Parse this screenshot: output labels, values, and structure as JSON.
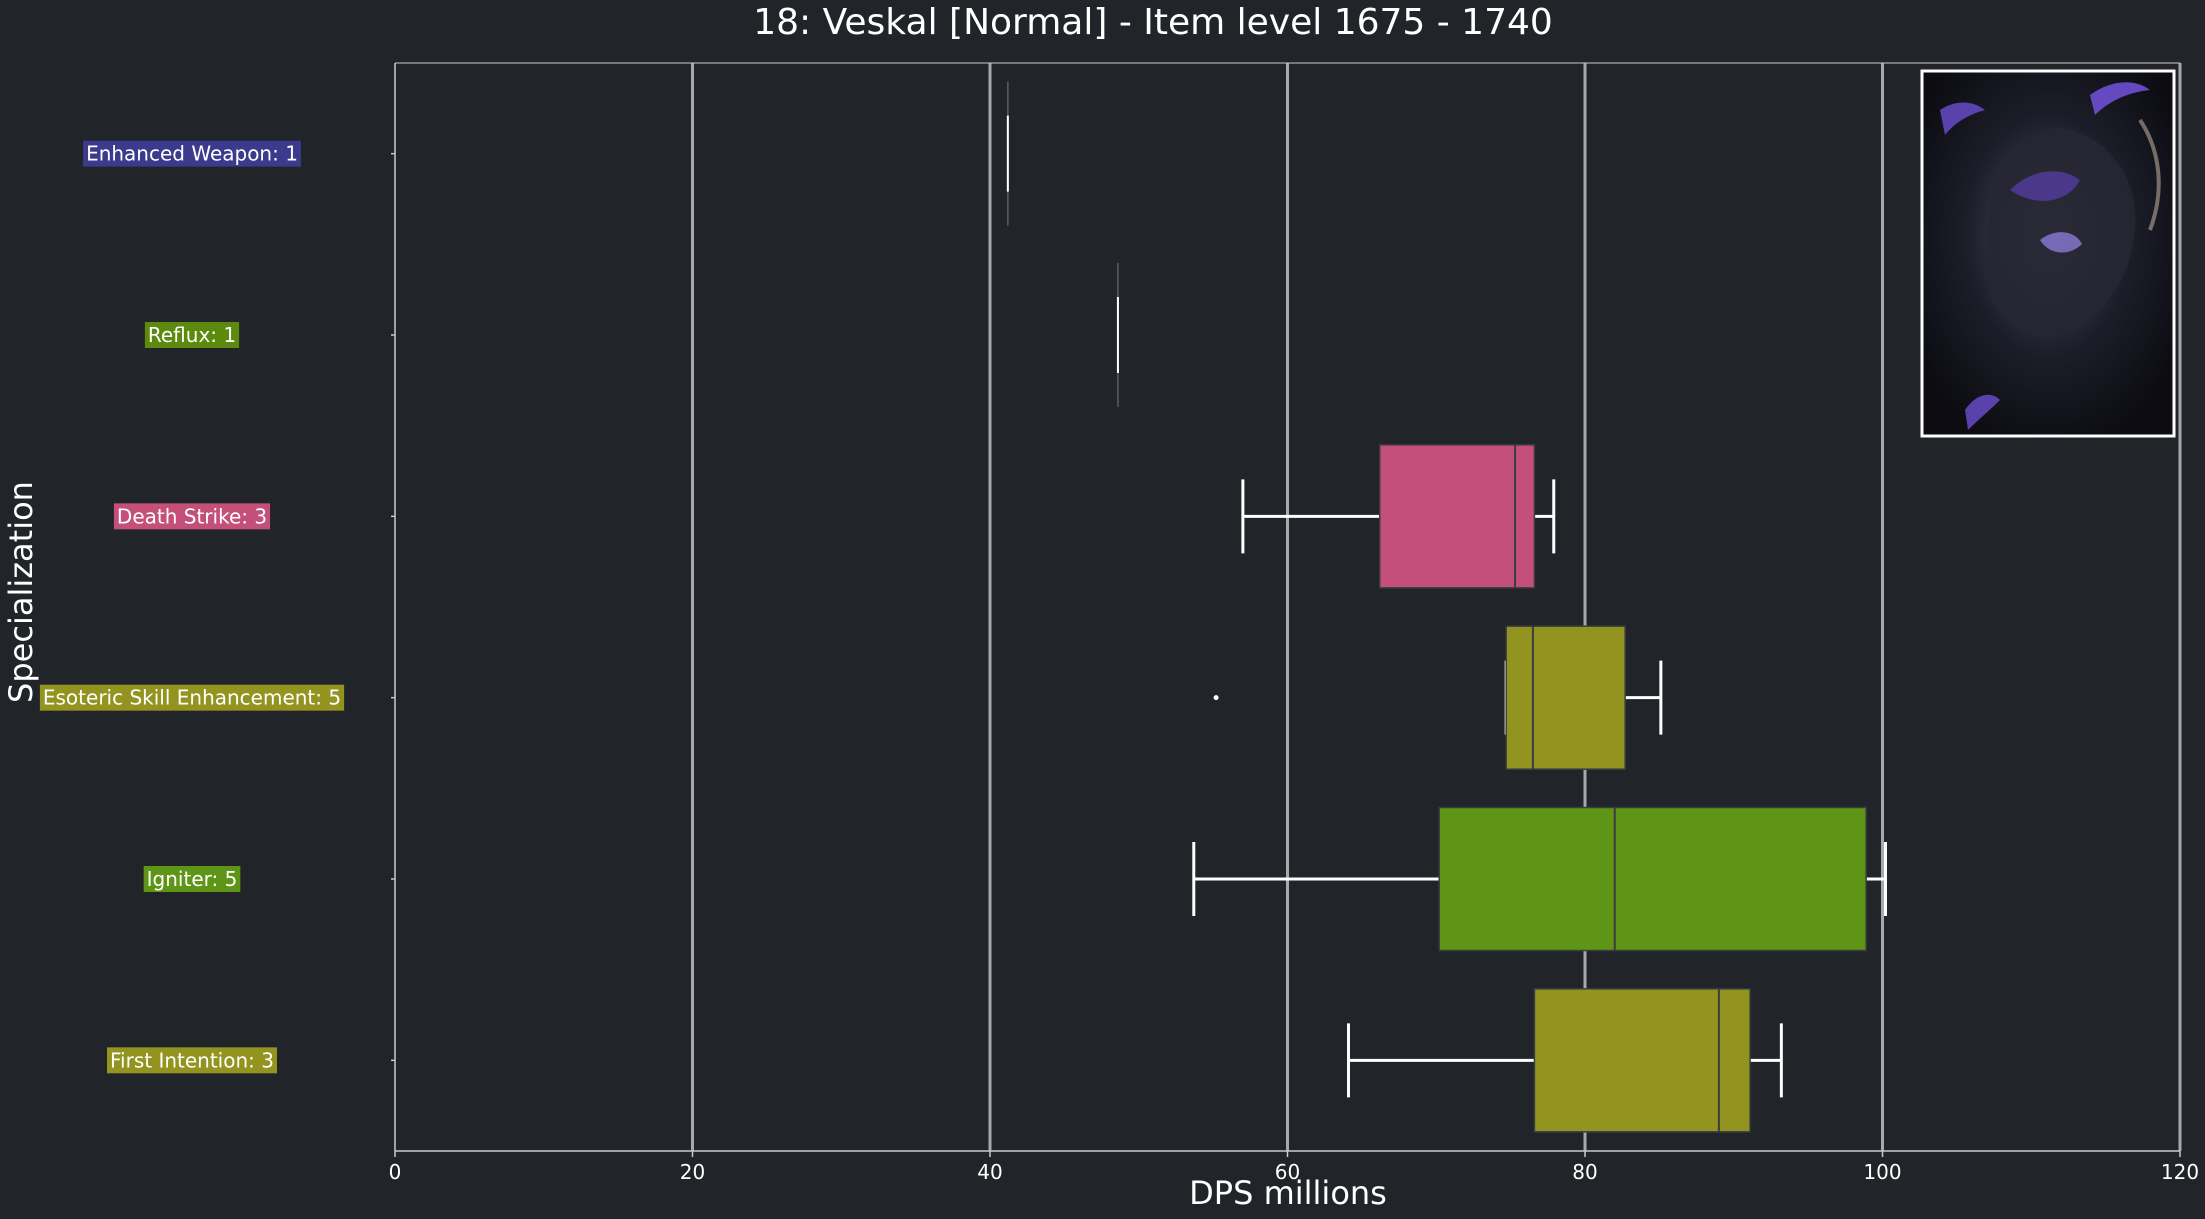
{
  "chart_data": {
    "type": "box",
    "orientation": "horizontal",
    "title": "18: Veskal [Normal] - Item level 1675 - 1740",
    "xlabel": "DPS millions",
    "ylabel": "Specialization",
    "xlim": [
      0,
      120
    ],
    "xticks": [
      0,
      20,
      40,
      60,
      80,
      100,
      120
    ],
    "grid": "vertical",
    "image": "boss-portrait",
    "background_color": "#212429",
    "categories": [
      {
        "label": "Enhanced Weapon: 1",
        "color": "#3b3a8c",
        "min": 41.2,
        "q1": 41.2,
        "median": 41.2,
        "q3": 41.2,
        "max": 41.2,
        "outliers": []
      },
      {
        "label": "Reflux: 1",
        "color": "#5b8a0e",
        "min": 48.6,
        "q1": 48.6,
        "median": 48.6,
        "q3": 48.6,
        "max": 48.6,
        "outliers": []
      },
      {
        "label": "Death Strike: 3",
        "color": "#c4507a",
        "min": 57.0,
        "q1": 66.2,
        "median": 75.3,
        "q3": 76.6,
        "max": 77.9,
        "outliers": []
      },
      {
        "label": "Esoteric Skill Enhancement: 5",
        "color": "#939420",
        "min": 74.7,
        "q1": 74.7,
        "median": 76.5,
        "q3": 82.7,
        "max": 85.1,
        "outliers": [
          55.2
        ]
      },
      {
        "label": "Igniter: 5",
        "color": "#5f9516",
        "min": 53.7,
        "q1": 70.2,
        "median": 82.0,
        "q3": 98.9,
        "max": 100.2,
        "outliers": []
      },
      {
        "label": "First Intention: 3",
        "color": "#939420",
        "min": 64.1,
        "q1": 76.6,
        "median": 89.0,
        "q3": 91.1,
        "max": 93.2,
        "outliers": []
      }
    ]
  }
}
